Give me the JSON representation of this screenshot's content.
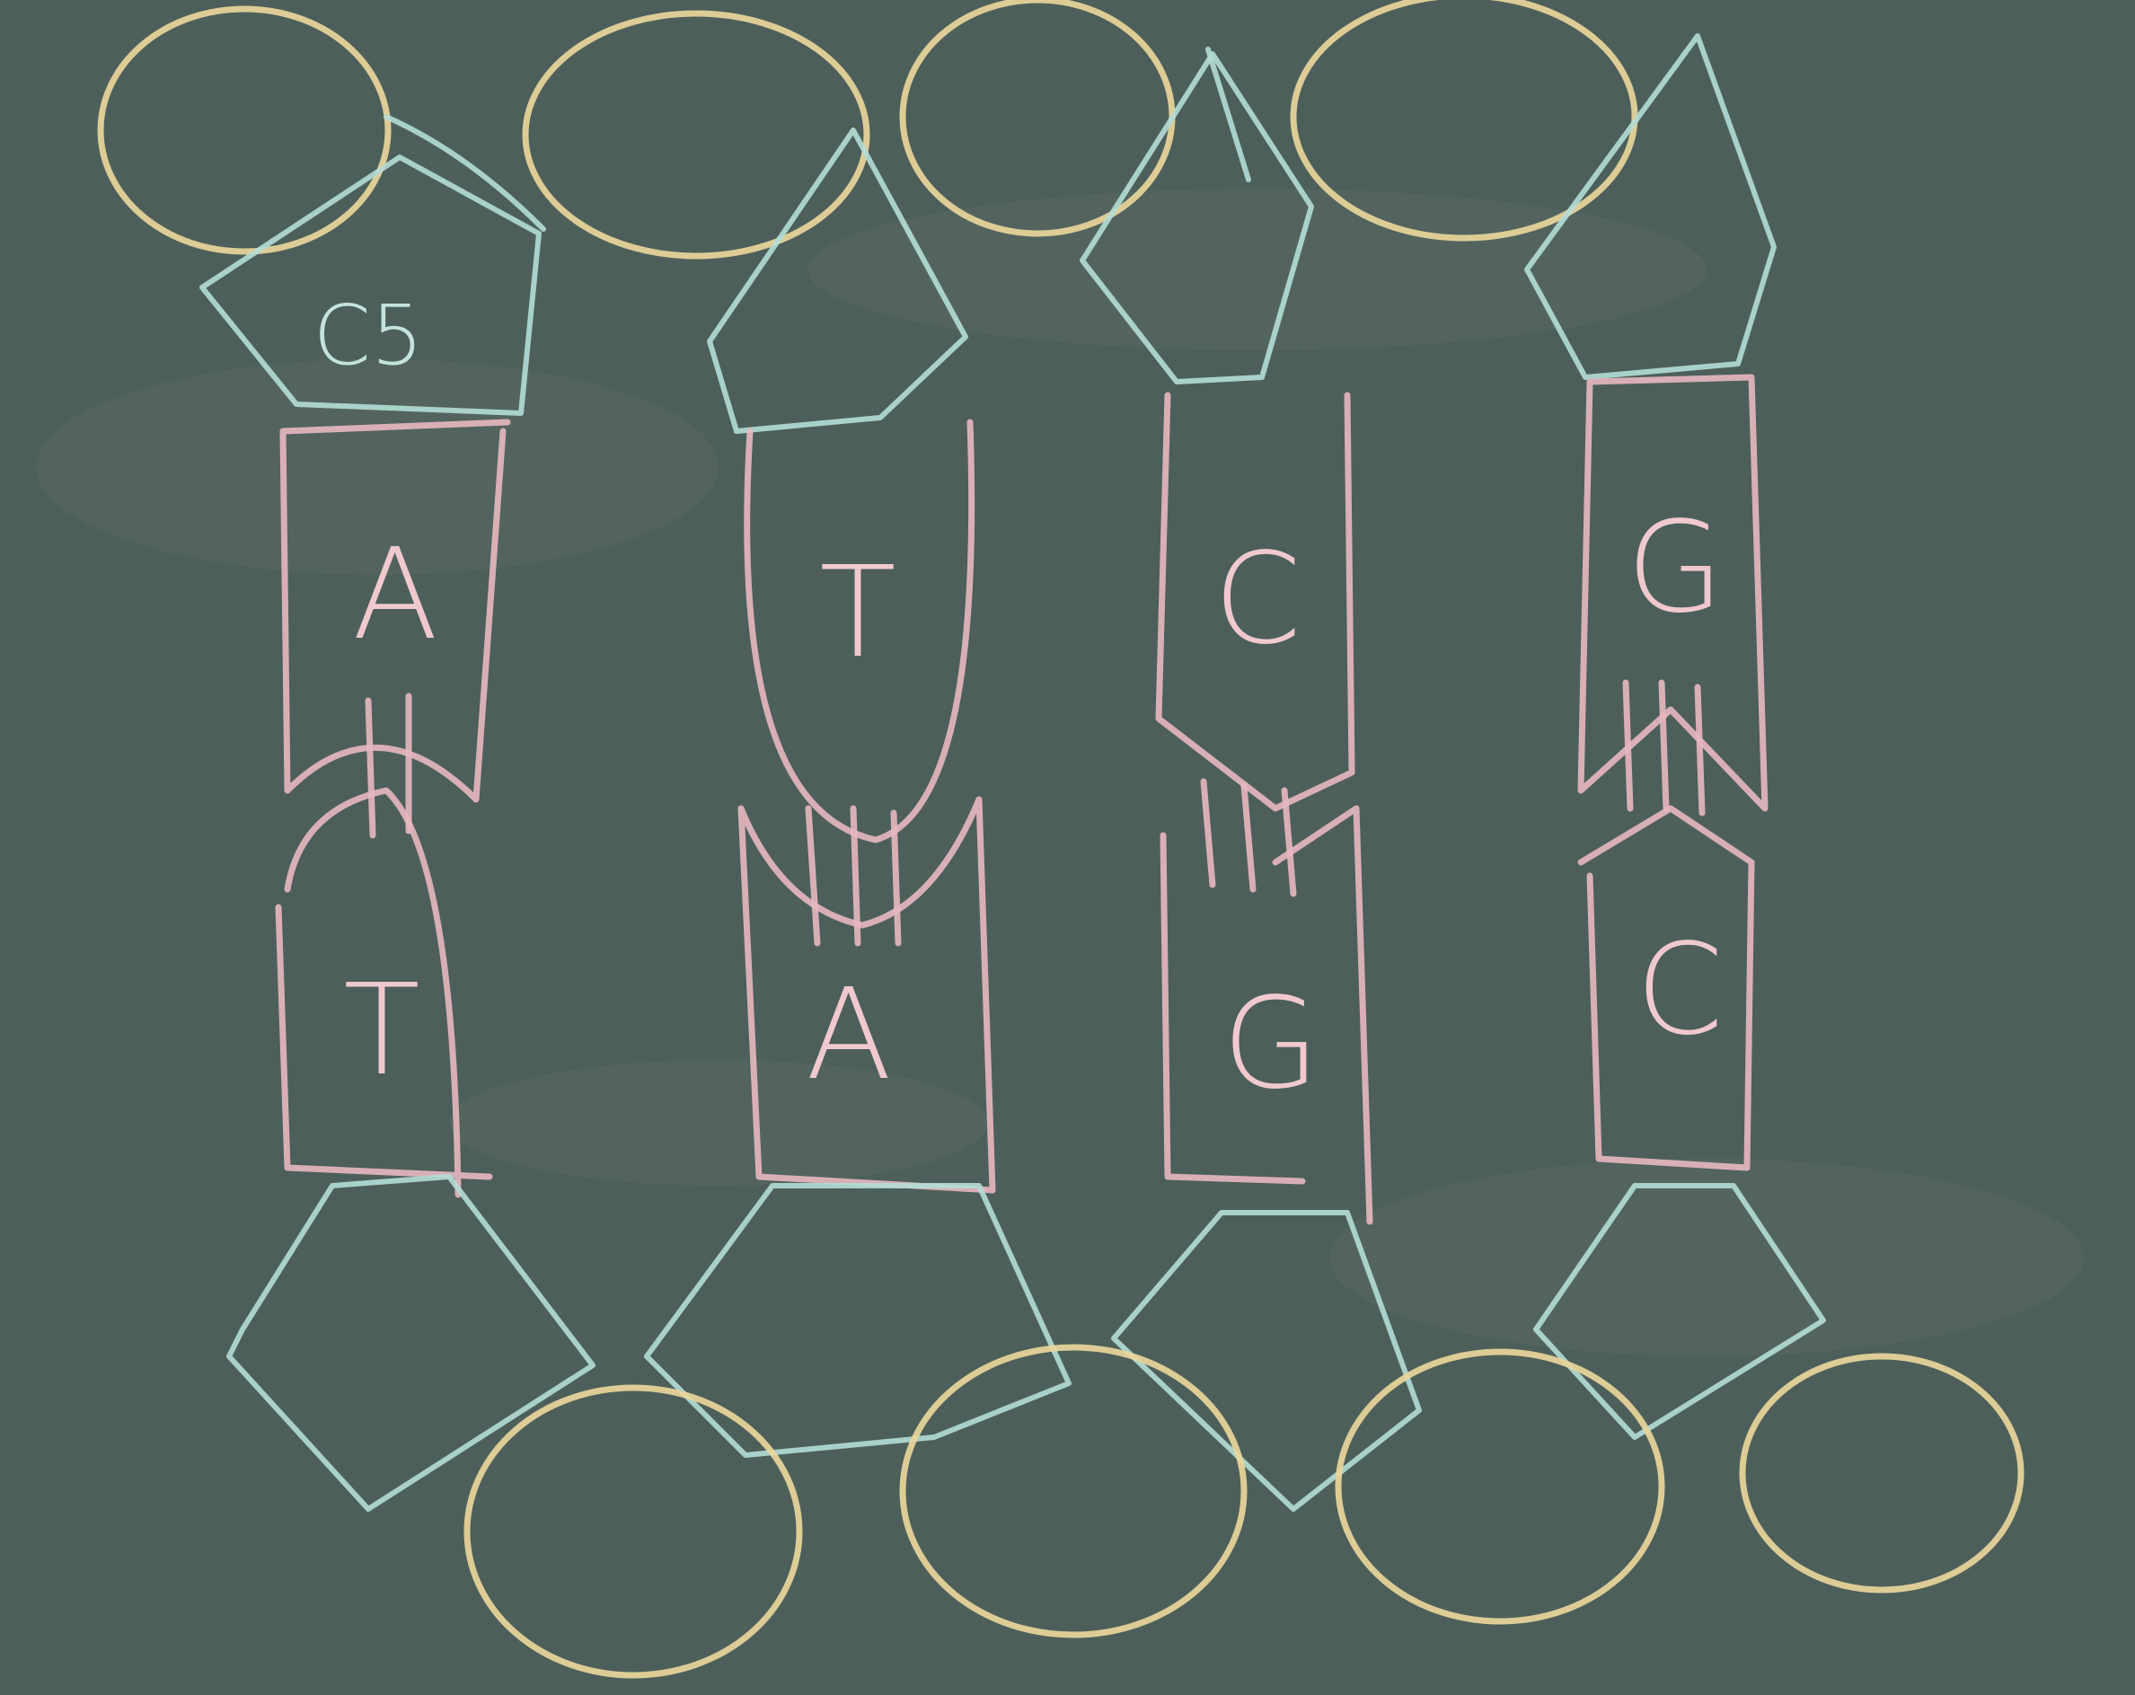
{
  "sugar_label": "C5",
  "top_strand": {
    "bases": [
      "A",
      "T",
      "C",
      "G"
    ]
  },
  "bottom_strand": {
    "bases": [
      "T",
      "A",
      "G",
      "C"
    ]
  },
  "colors": {
    "board": "#4d5f5a",
    "phosphate": "#e9d69a",
    "sugar": "#b4ddd6",
    "base": "#e8b8c0"
  }
}
